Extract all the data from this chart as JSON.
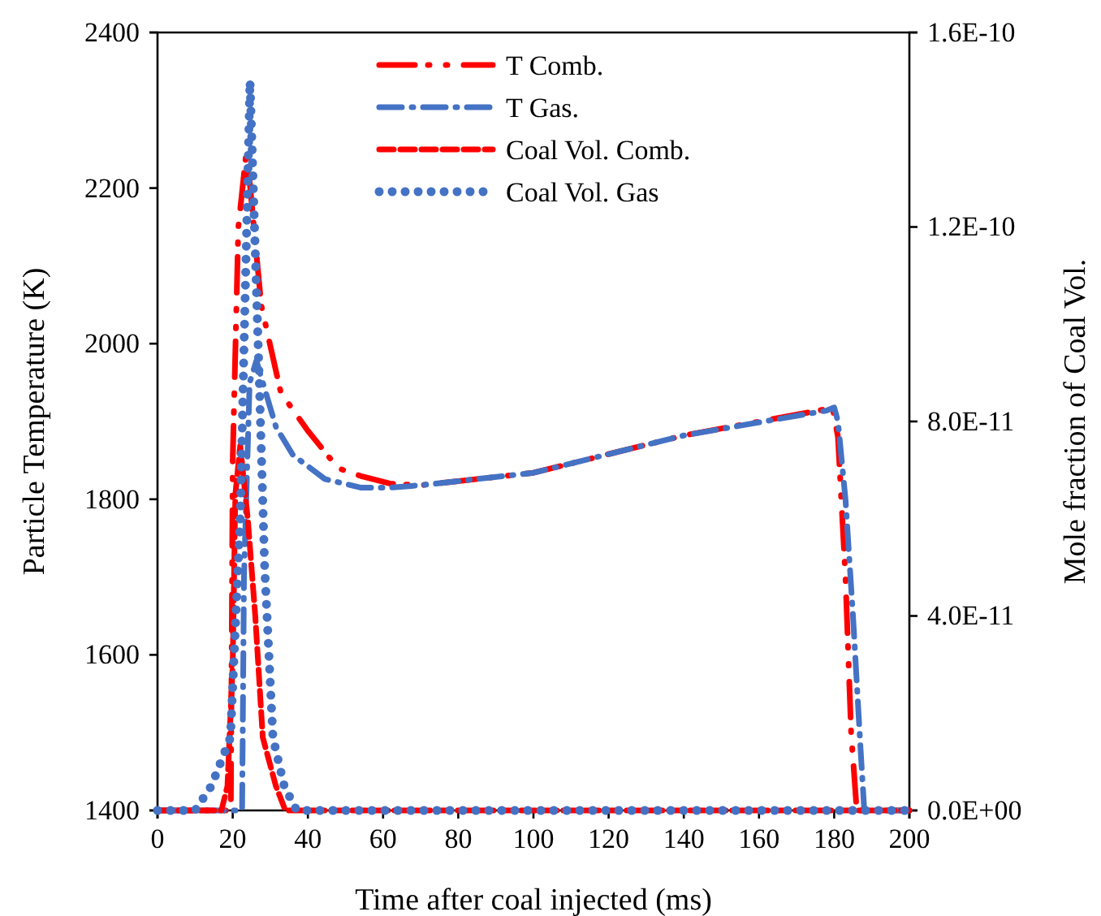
{
  "chart_data": {
    "type": "line",
    "xlabel": "Time after coal injected (ms)",
    "ylabel": "Particle Temperature (K)",
    "y2label": "Mole fraction of Coal Vol.",
    "xlim": [
      0,
      200
    ],
    "xticks": [
      0,
      20,
      40,
      60,
      80,
      100,
      120,
      140,
      160,
      180,
      200
    ],
    "ylim": [
      1400,
      2400
    ],
    "yticks": [
      1400,
      1600,
      1800,
      2000,
      2200,
      2400
    ],
    "y2lim": [
      0,
      1.6e-10
    ],
    "y2ticks": [
      {
        "value": 0,
        "label": "0.0E+00"
      },
      {
        "value": 4e-11,
        "label": "4.0E-11"
      },
      {
        "value": 8e-11,
        "label": "8.0E-11"
      },
      {
        "value": 1.2e-10,
        "label": "1.2E-10"
      },
      {
        "value": 1.6e-10,
        "label": "1.6E-10"
      }
    ],
    "grid": false,
    "legend": "top",
    "series": [
      {
        "name": "T Comb.",
        "color": "#ff0000",
        "line_style": "dashdotdot",
        "x": [
          0,
          10,
          19.5,
          20,
          21.5,
          23.7,
          27.6,
          32.8,
          40,
          48,
          54,
          62,
          70,
          100,
          140,
          178,
          179.5,
          181,
          183,
          184.5,
          186,
          190,
          200
        ],
        "values": [
          1400,
          1400,
          1400,
          1850,
          2150,
          2250,
          2049,
          1937,
          1888,
          1840,
          1830,
          1820,
          1818,
          1834,
          1882,
          1916,
          1920,
          1880,
          1700,
          1500,
          1400,
          1400,
          1400
        ]
      },
      {
        "name": "T Gas.",
        "color": "#4472c4",
        "line_style": "dashdot",
        "x": [
          0,
          10,
          22.5,
          23,
          24.5,
          26.3,
          31.5,
          36,
          44.5,
          54,
          62,
          70,
          100,
          140,
          178,
          180,
          181,
          183,
          185,
          187,
          188,
          192,
          200
        ],
        "values": [
          1400,
          1400,
          1400,
          1700,
          1950,
          1978,
          1893,
          1857,
          1826,
          1815,
          1815,
          1818,
          1834,
          1882,
          1914,
          1918,
          1900,
          1800,
          1650,
          1480,
          1400,
          1400,
          1400
        ]
      },
      {
        "name": "Coal Vol. Comb.",
        "color": "#ff0000",
        "line_style": "dashed",
        "axis": "y2",
        "x": [
          0,
          14,
          17,
          18.6,
          20,
          20.7,
          22,
          24,
          26,
          28,
          31.5,
          34,
          40,
          200
        ],
        "values": [
          0,
          0,
          0,
          5e-12,
          3e-11,
          6.5e-11,
          7.5e-11,
          6e-11,
          4e-11,
          1.5e-11,
          5e-12,
          0,
          0,
          0
        ]
      },
      {
        "name": "Coal Vol. Gas",
        "color": "#4472c4",
        "line_style": "dotted",
        "axis": "y2",
        "x": [
          0,
          10,
          14.3,
          19.4,
          22,
          23,
          24.6,
          27.2,
          28.5,
          30.7,
          33.7,
          37,
          200
        ],
        "values": [
          0,
          0,
          5e-12,
          1.5e-11,
          6e-11,
          9.5e-11,
          1.5e-10,
          8.5e-11,
          5e-11,
          1.5e-11,
          5e-12,
          0,
          0
        ]
      }
    ]
  }
}
